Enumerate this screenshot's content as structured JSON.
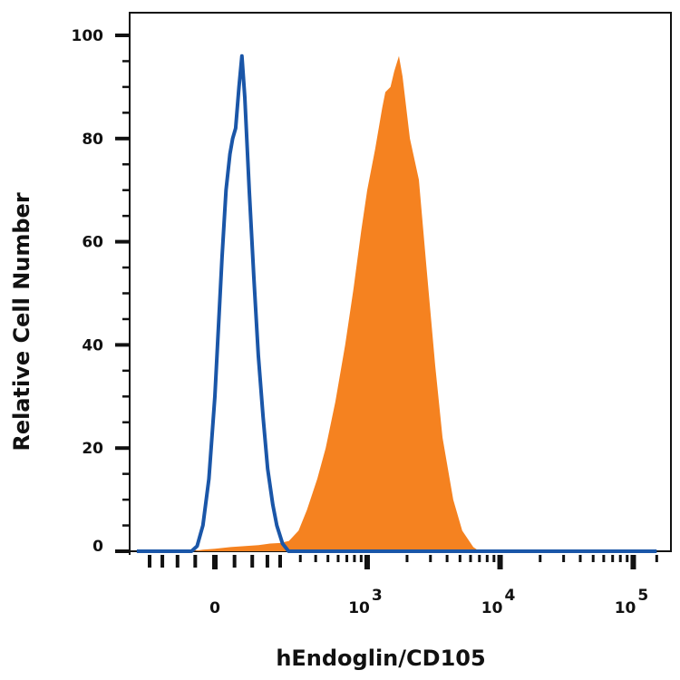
{
  "chart_data": {
    "type": "area",
    "title": "",
    "xlabel": "hEndoglin/CD105",
    "ylabel": "Relative Cell Number",
    "x_scale": "biexponential",
    "xlim": [
      -260,
      150000
    ],
    "ylim": [
      0,
      104
    ],
    "grid": false,
    "y_ticks": [
      0,
      20,
      40,
      60,
      80,
      100
    ],
    "y_tick_labels": [
      "0",
      "20",
      "40",
      "60",
      "80",
      "100"
    ],
    "x_ticks": [
      0,
      1000,
      10000,
      100000
    ],
    "x_tick_labels": [
      {
        "base": "0",
        "exp": ""
      },
      {
        "base": "10",
        "exp": "3"
      },
      {
        "base": "10",
        "exp": "4"
      },
      {
        "base": "10",
        "exp": "5"
      }
    ],
    "series": [
      {
        "style": "filled",
        "color": "#f58220",
        "x": [
          -260,
          -60,
          -30,
          0,
          40,
          80,
          120,
          160,
          200,
          240,
          290,
          340,
          412,
          480,
          571,
          680,
          788,
          900,
          1000,
          1150,
          1300,
          1373,
          1500,
          1600,
          1738,
          1850,
          2100,
          2456,
          2800,
          3254,
          3700,
          4450,
          5200,
          6290,
          7000,
          150000
        ],
        "y": [
          0,
          0,
          0.3,
          0.5,
          0.8,
          1,
          1.2,
          1.5,
          1.6,
          2,
          4,
          8,
          14,
          20,
          29,
          40,
          51,
          62,
          70,
          78,
          86,
          89,
          90,
          93,
          96,
          92,
          80,
          72,
          55,
          36,
          22,
          10,
          4,
          0.8,
          0,
          0
        ]
      },
      {
        "style": "outline",
        "color": "#1a56a8",
        "x": [
          -260,
          -60,
          -45,
          -30,
          -15,
          0,
          10,
          18,
          28,
          38,
          45,
          53,
          62,
          70,
          78,
          91,
          105,
          119,
          135,
          151,
          170,
          186,
          210,
          238,
          260,
          150000
        ],
        "y": [
          0,
          0,
          1,
          5,
          14,
          30,
          45,
          57,
          70,
          77,
          80,
          82,
          90,
          96,
          88,
          70,
          53,
          38,
          26,
          16,
          9,
          5,
          1.5,
          0,
          0,
          0
        ]
      }
    ]
  }
}
